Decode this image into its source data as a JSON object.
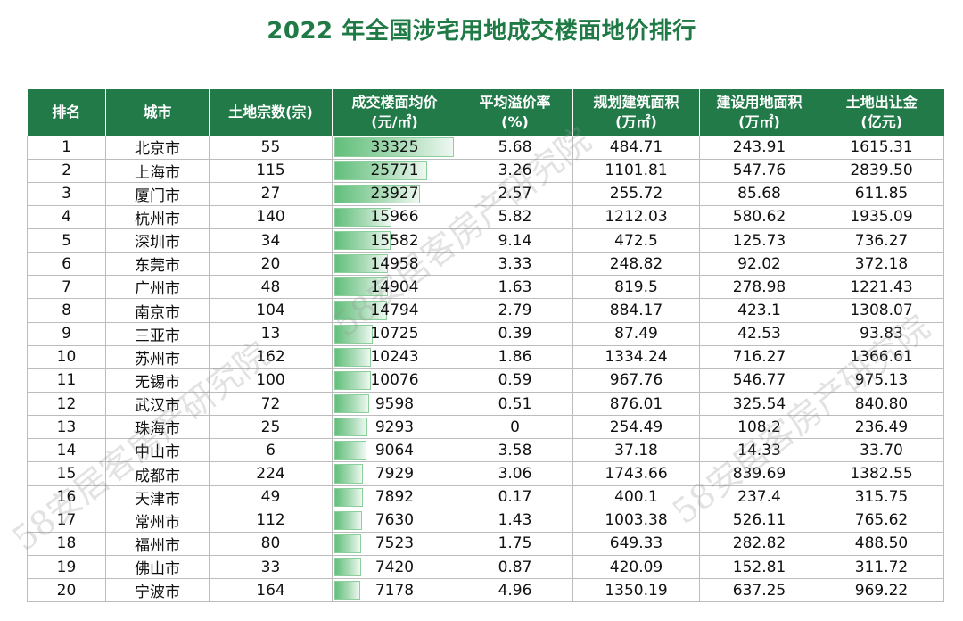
{
  "title": "2022 年全国涉宅用地成交楼面地价排行",
  "watermark": "58安居客房产研究院",
  "columns": [
    {
      "line1": "排名",
      "line2": ""
    },
    {
      "line1": "城市",
      "line2": ""
    },
    {
      "line1": "土地宗数(宗)",
      "line2": ""
    },
    {
      "line1": "成交楼面均价",
      "line2": "(元/㎡)"
    },
    {
      "line1": "平均溢价率",
      "line2": "(%)"
    },
    {
      "line1": "规划建筑面积",
      "line2": "(万㎡)"
    },
    {
      "line1": "建设用地面积",
      "line2": "(万㎡)"
    },
    {
      "line1": "土地出让金",
      "line2": "(亿元)"
    }
  ],
  "rows": [
    {
      "rank": "1",
      "city": "北京市",
      "count": "55",
      "price": "33325",
      "premium": "5.68",
      "plan_area": "484.71",
      "land_area": "243.91",
      "revenue": "1615.31"
    },
    {
      "rank": "2",
      "city": "上海市",
      "count": "115",
      "price": "25771",
      "premium": "3.26",
      "plan_area": "1101.81",
      "land_area": "547.76",
      "revenue": "2839.50"
    },
    {
      "rank": "3",
      "city": "厦门市",
      "count": "27",
      "price": "23927",
      "premium": "2.57",
      "plan_area": "255.72",
      "land_area": "85.68",
      "revenue": "611.85"
    },
    {
      "rank": "4",
      "city": "杭州市",
      "count": "140",
      "price": "15966",
      "premium": "5.82",
      "plan_area": "1212.03",
      "land_area": "580.62",
      "revenue": "1935.09"
    },
    {
      "rank": "5",
      "city": "深圳市",
      "count": "34",
      "price": "15582",
      "premium": "9.14",
      "plan_area": "472.5",
      "land_area": "125.73",
      "revenue": "736.27"
    },
    {
      "rank": "6",
      "city": "东莞市",
      "count": "20",
      "price": "14958",
      "premium": "3.33",
      "plan_area": "248.82",
      "land_area": "92.02",
      "revenue": "372.18"
    },
    {
      "rank": "7",
      "city": "广州市",
      "count": "48",
      "price": "14904",
      "premium": "1.63",
      "plan_area": "819.5",
      "land_area": "278.98",
      "revenue": "1221.43"
    },
    {
      "rank": "8",
      "city": "南京市",
      "count": "104",
      "price": "14794",
      "premium": "2.79",
      "plan_area": "884.17",
      "land_area": "423.1",
      "revenue": "1308.07"
    },
    {
      "rank": "9",
      "city": "三亚市",
      "count": "13",
      "price": "10725",
      "premium": "0.39",
      "plan_area": "87.49",
      "land_area": "42.53",
      "revenue": "93.83"
    },
    {
      "rank": "10",
      "city": "苏州市",
      "count": "162",
      "price": "10243",
      "premium": "1.86",
      "plan_area": "1334.24",
      "land_area": "716.27",
      "revenue": "1366.61"
    },
    {
      "rank": "11",
      "city": "无锡市",
      "count": "100",
      "price": "10076",
      "premium": "0.59",
      "plan_area": "967.76",
      "land_area": "546.77",
      "revenue": "975.13"
    },
    {
      "rank": "12",
      "city": "武汉市",
      "count": "72",
      "price": "9598",
      "premium": "0.51",
      "plan_area": "876.01",
      "land_area": "325.54",
      "revenue": "840.80"
    },
    {
      "rank": "13",
      "city": "珠海市",
      "count": "25",
      "price": "9293",
      "premium": "0",
      "plan_area": "254.49",
      "land_area": "108.2",
      "revenue": "236.49"
    },
    {
      "rank": "14",
      "city": "中山市",
      "count": "6",
      "price": "9064",
      "premium": "3.58",
      "plan_area": "37.18",
      "land_area": "14.33",
      "revenue": "33.70"
    },
    {
      "rank": "15",
      "city": "成都市",
      "count": "224",
      "price": "7929",
      "premium": "3.06",
      "plan_area": "1743.66",
      "land_area": "839.69",
      "revenue": "1382.55"
    },
    {
      "rank": "16",
      "city": "天津市",
      "count": "49",
      "price": "7892",
      "premium": "0.17",
      "plan_area": "400.1",
      "land_area": "237.4",
      "revenue": "315.75"
    },
    {
      "rank": "17",
      "city": "常州市",
      "count": "112",
      "price": "7630",
      "premium": "1.43",
      "plan_area": "1003.38",
      "land_area": "526.11",
      "revenue": "765.62"
    },
    {
      "rank": "18",
      "city": "福州市",
      "count": "80",
      "price": "7523",
      "premium": "1.75",
      "plan_area": "649.33",
      "land_area": "282.82",
      "revenue": "488.50"
    },
    {
      "rank": "19",
      "city": "佛山市",
      "count": "33",
      "price": "7420",
      "premium": "0.87",
      "plan_area": "420.09",
      "land_area": "152.81",
      "revenue": "311.72"
    },
    {
      "rank": "20",
      "city": "宁波市",
      "count": "164",
      "price": "7178",
      "premium": "4.96",
      "plan_area": "1350.19",
      "land_area": "637.25",
      "revenue": "969.22"
    }
  ]
}
